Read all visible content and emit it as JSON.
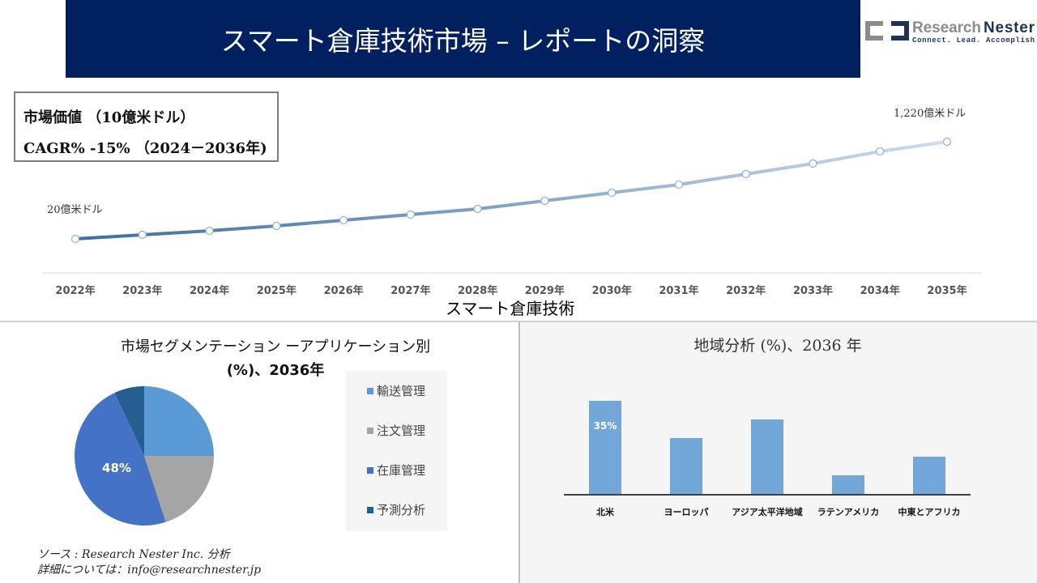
{
  "header": {
    "title": "スマート倉庫技術市場 – レポートの洞察"
  },
  "logo": {
    "name": "Research Nester",
    "tagline": "Connect. Lead. Accomplish",
    "color_dark": "#1b3354",
    "color_gray": "#8c8c8c"
  },
  "infobox": {
    "line1": "市場価値 （10億米ドル）",
    "line2": "CAGR% -15% （2024－2036年)"
  },
  "overlay_label": "スマート倉庫技術",
  "colors": {
    "banner": "#012060",
    "bar": "#72a7d9",
    "line_start": "#3a6ea5",
    "line_end": "#cddcee"
  },
  "chart_data": [
    {
      "type": "line",
      "categories": [
        "2022年",
        "2023年",
        "2024年",
        "2025年",
        "2026年",
        "2027年",
        "2028年",
        "2029年",
        "2030年",
        "2031年",
        "2032年",
        "2033年",
        "2034年",
        "2035年"
      ],
      "values": [
        20,
        70,
        120,
        180,
        250,
        320,
        390,
        490,
        590,
        690,
        820,
        950,
        1100,
        1220
      ],
      "annotations": {
        "first": "20億米ドル",
        "last": "1,220億米ドル"
      },
      "grid": false
    },
    {
      "type": "pie",
      "title": "市場セグメンテーション ーアプリケーション別",
      "subtitle": "(%)、2036年",
      "categories": [
        "輸送管理",
        "注文管理",
        "在庫管理",
        "予測分析"
      ],
      "values": [
        25,
        20,
        48,
        7
      ],
      "colors": [
        "#5b9bd5",
        "#a5a5a5",
        "#4472c4",
        "#255e91"
      ],
      "data_label": "48%",
      "legend": "right"
    },
    {
      "type": "bar",
      "title": "地域分析 (%)、2036 年",
      "categories": [
        "北米",
        "ヨーロッパ",
        "アジア太平洋地域",
        "ラテンアメリカ",
        "中東とアフリカ"
      ],
      "values": [
        35,
        21,
        28,
        7,
        14
      ],
      "data_label": "35%",
      "ylim": [
        0,
        35
      ]
    }
  ],
  "source": {
    "line1": "ソース : Research Nester Inc. 分析",
    "line2": "詳細については：info@researchnester.jp"
  }
}
